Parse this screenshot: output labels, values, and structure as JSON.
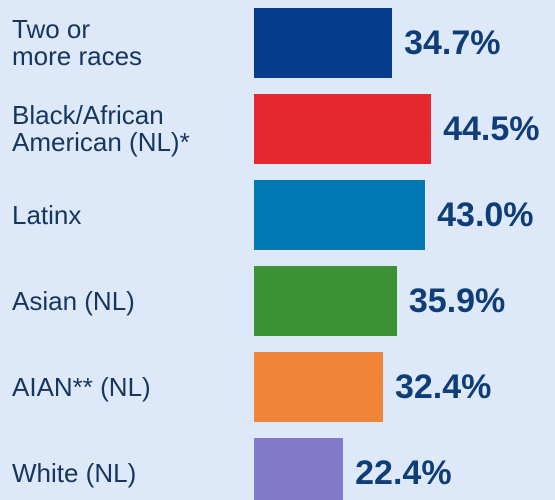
{
  "chart_data": {
    "type": "bar",
    "orientation": "horizontal",
    "categories": [
      "Two or\nmore races",
      "Black/African\nAmerican (NL)*",
      "Latinx",
      "Asian (NL)",
      "AIAN** (NL)",
      "White (NL)"
    ],
    "values": [
      34.7,
      44.5,
      43.0,
      35.9,
      32.4,
      22.4
    ],
    "value_labels": [
      "34.7%",
      "44.5%",
      "43.0%",
      "35.9%",
      "32.4%",
      "22.4%"
    ],
    "colors": [
      "#073b8c",
      "#e4282d",
      "#0079b4",
      "#3d9135",
      "#f08538",
      "#8279c8"
    ]
  }
}
